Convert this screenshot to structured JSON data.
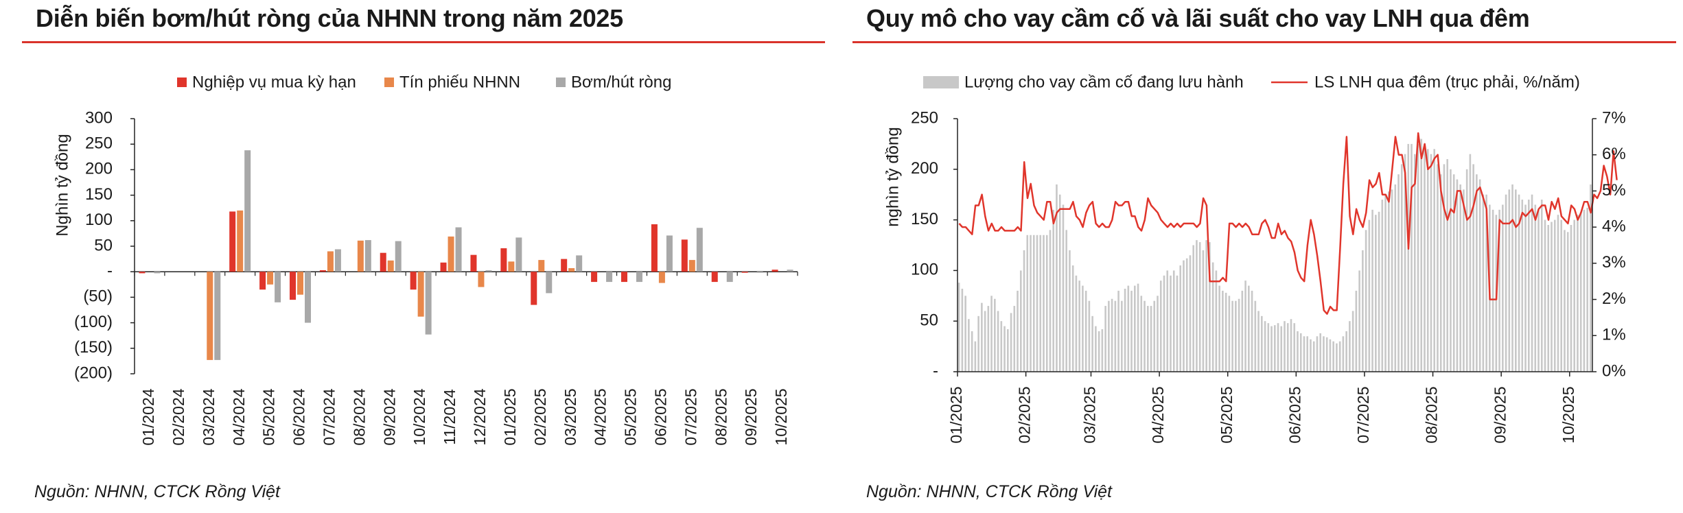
{
  "left": {
    "title": "Diễn biến bơm/hút ròng của NHNN trong năm 2025",
    "source": "Nguồn: NHNN, CTCK Rồng Việt"
  },
  "right": {
    "title": "Quy mô cho vay cầm cố và lãi suất cho vay LNH qua đêm",
    "source": "Nguồn: NHNN, CTCK Rồng Việt"
  },
  "colors": {
    "red": "#e0352b",
    "orange": "#e8874a",
    "gray": "#a8a8a8",
    "lightgray": "#c8c8c8",
    "rule": "#d9322a"
  },
  "chart_data": [
    {
      "type": "bar",
      "title": "Diễn biến bơm/hút ròng của NHNN trong năm 2025",
      "ylabel": "Nghìn tỷ đồng",
      "xlabel": "",
      "ylim": [
        -200,
        300
      ],
      "yticks": [
        300,
        250,
        200,
        150,
        100,
        50,
        0,
        -50,
        -100,
        -150,
        -200
      ],
      "ytick_labels": [
        "300",
        "250",
        "200",
        "150",
        "100",
        "50",
        "-",
        "(50)",
        "(100)",
        "(150)",
        "(200)"
      ],
      "legend_position": "top",
      "categories": [
        "01/2024",
        "02/2024",
        "03/2024",
        "04/2024",
        "05/2024",
        "06/2024",
        "07/2024",
        "08/2024",
        "09/2024",
        "10/2024",
        "11/2024",
        "12/2024",
        "01/2025",
        "02/2025",
        "03/2025",
        "04/2025",
        "05/2025",
        "06/2025",
        "07/2025",
        "08/2025",
        "09/2025",
        "10/2025"
      ],
      "series": [
        {
          "name": "Nghiệp vụ mua kỳ hạn",
          "color": "#e0352b",
          "values": [
            -3,
            0,
            0,
            118,
            -35,
            -55,
            3,
            0,
            37,
            -35,
            18,
            33,
            46,
            -65,
            25,
            -20,
            -20,
            93,
            63,
            -20,
            -2,
            4
          ]
        },
        {
          "name": "Tín phiếu NHNN",
          "color": "#e8874a",
          "values": [
            0,
            0,
            -173,
            120,
            -25,
            -45,
            40,
            61,
            22,
            -88,
            69,
            -30,
            20,
            23,
            7,
            0,
            0,
            -22,
            23,
            0,
            0,
            0
          ]
        },
        {
          "name": "Bơm/hút ròng",
          "color": "#a8a8a8",
          "values": [
            -3,
            0,
            -173,
            238,
            -60,
            -100,
            44,
            62,
            60,
            -123,
            87,
            3,
            67,
            -42,
            32,
            -20,
            -20,
            71,
            86,
            -20,
            -2,
            4
          ]
        }
      ]
    },
    {
      "type": "bar+line",
      "title": "Quy mô cho vay cầm cố và lãi suất cho vay LNH qua đêm",
      "ylabel": "nghìn tỷ đồng",
      "ylim": [
        0,
        250
      ],
      "yticks": [
        250,
        200,
        150,
        100,
        50,
        0
      ],
      "ytick_labels": [
        "250",
        "200",
        "150",
        "100",
        "50",
        "-"
      ],
      "y2lim": [
        0,
        7
      ],
      "y2ticks": [
        7,
        6,
        5,
        4,
        3,
        2,
        1,
        0
      ],
      "y2tick_labels": [
        "7%",
        "6%",
        "5%",
        "4%",
        "3%",
        "2%",
        "1%",
        "0%"
      ],
      "legend_position": "top",
      "x_tick_labels": [
        "01/2025",
        "02/2025",
        "03/2025",
        "04/2025",
        "05/2025",
        "06/2025",
        "07/2025",
        "08/2025",
        "09/2025",
        "10/2025"
      ],
      "x_tick_index": [
        0,
        21,
        41,
        62,
        83,
        104,
        125,
        146,
        167,
        188
      ],
      "series": [
        {
          "name": "Lượng cho vay cầm cố đang lưu hành",
          "type": "bar",
          "color": "#c8c8c8",
          "values": [
            88,
            82,
            75,
            52,
            40,
            30,
            55,
            68,
            60,
            65,
            75,
            72,
            60,
            50,
            45,
            42,
            58,
            65,
            80,
            100,
            120,
            135,
            135,
            135,
            135,
            135,
            135,
            135,
            140,
            160,
            185,
            175,
            165,
            140,
            120,
            105,
            95,
            90,
            85,
            80,
            70,
            55,
            45,
            40,
            42,
            65,
            70,
            72,
            70,
            80,
            70,
            82,
            85,
            80,
            85,
            87,
            75,
            70,
            65,
            65,
            70,
            75,
            90,
            95,
            100,
            95,
            100,
            95,
            105,
            110,
            112,
            115,
            125,
            130,
            128,
            120,
            130,
            128,
            108,
            100,
            85,
            80,
            78,
            75,
            70,
            70,
            72,
            80,
            90,
            85,
            80,
            70,
            60,
            55,
            50,
            48,
            45,
            46,
            48,
            45,
            50,
            48,
            52,
            48,
            40,
            38,
            35,
            35,
            32,
            30,
            35,
            38,
            35,
            34,
            32,
            30,
            28,
            30,
            35,
            40,
            50,
            60,
            80,
            100,
            120,
            140,
            150,
            160,
            155,
            158,
            170,
            175,
            178,
            180,
            185,
            195,
            205,
            215,
            225,
            225,
            215,
            225,
            230,
            225,
            220,
            215,
            220,
            205,
            195,
            205,
            210,
            200,
            195,
            190,
            185,
            180,
            200,
            215,
            205,
            195,
            190,
            175,
            175,
            165,
            160,
            155,
            160,
            165,
            175,
            180,
            185,
            180,
            175,
            170,
            165,
            170,
            175,
            165,
            160,
            170,
            150,
            145,
            148,
            150,
            155,
            150,
            140,
            138,
            145,
            150,
            155,
            158,
            160,
            162,
            185
          ]
        },
        {
          "name": "LS LNH qua đêm (trục phải, %/năm)",
          "type": "line",
          "axis": "right",
          "color": "#e0352b",
          "values": [
            4.1,
            4.0,
            4.0,
            3.9,
            3.8,
            4.6,
            4.6,
            4.9,
            4.3,
            3.9,
            4.1,
            3.9,
            3.9,
            4.0,
            3.9,
            3.9,
            3.9,
            3.9,
            4.0,
            3.9,
            5.8,
            4.8,
            5.2,
            4.6,
            4.4,
            4.3,
            4.2,
            4.7,
            4.7,
            4.1,
            4.4,
            4.5,
            4.5,
            4.5,
            4.5,
            4.7,
            4.3,
            4.2,
            4.0,
            4.4,
            4.6,
            4.7,
            4.1,
            4.0,
            4.1,
            4.0,
            4.0,
            4.2,
            4.7,
            4.6,
            4.6,
            4.7,
            4.7,
            4.3,
            4.3,
            4.0,
            3.9,
            4.2,
            4.8,
            4.6,
            4.5,
            4.4,
            4.2,
            4.1,
            4.0,
            4.1,
            4.0,
            4.1,
            4.0,
            4.1,
            4.1,
            4.1,
            4.1,
            4.0,
            4.1,
            4.8,
            4.6,
            2.5,
            2.5,
            2.5,
            2.5,
            2.6,
            2.5,
            4.1,
            4.1,
            4.0,
            4.1,
            4.0,
            4.1,
            4.0,
            3.8,
            3.8,
            3.8,
            4.1,
            4.2,
            4.0,
            3.7,
            3.7,
            4.1,
            3.8,
            3.9,
            3.7,
            3.6,
            3.3,
            2.8,
            2.6,
            2.5,
            3.5,
            4.2,
            3.8,
            3.2,
            2.5,
            1.7,
            1.6,
            1.8,
            1.7,
            1.7,
            3.4,
            5.2,
            6.5,
            4.3,
            3.8,
            4.5,
            4.2,
            4.0,
            4.4,
            5.3,
            5.1,
            5.2,
            5.5,
            4.9,
            4.9,
            4.7,
            5.6,
            6.5,
            6.0,
            6.0,
            5.5,
            3.4,
            5.1,
            5.2,
            6.6,
            5.9,
            6.3,
            5.6,
            5.7,
            5.9,
            6.0,
            5.0,
            4.5,
            4.2,
            4.5,
            4.4,
            5.0,
            5.0,
            4.6,
            4.2,
            4.3,
            4.6,
            5.0,
            5.1,
            4.8,
            4.5,
            2.0,
            2.0,
            2.0,
            4.2,
            4.1,
            4.1,
            4.1,
            4.2,
            4.0,
            4.1,
            4.4,
            4.3,
            4.4,
            4.5,
            4.2,
            4.5,
            4.6,
            4.6,
            4.2,
            4.7,
            4.5,
            4.8,
            4.3,
            4.2,
            4.1,
            4.6,
            4.5,
            4.2,
            4.4,
            4.7,
            4.7,
            4.4,
            4.9,
            4.8,
            5.0,
            5.7,
            5.4,
            4.9,
            6.1,
            5.3
          ]
        }
      ]
    }
  ]
}
